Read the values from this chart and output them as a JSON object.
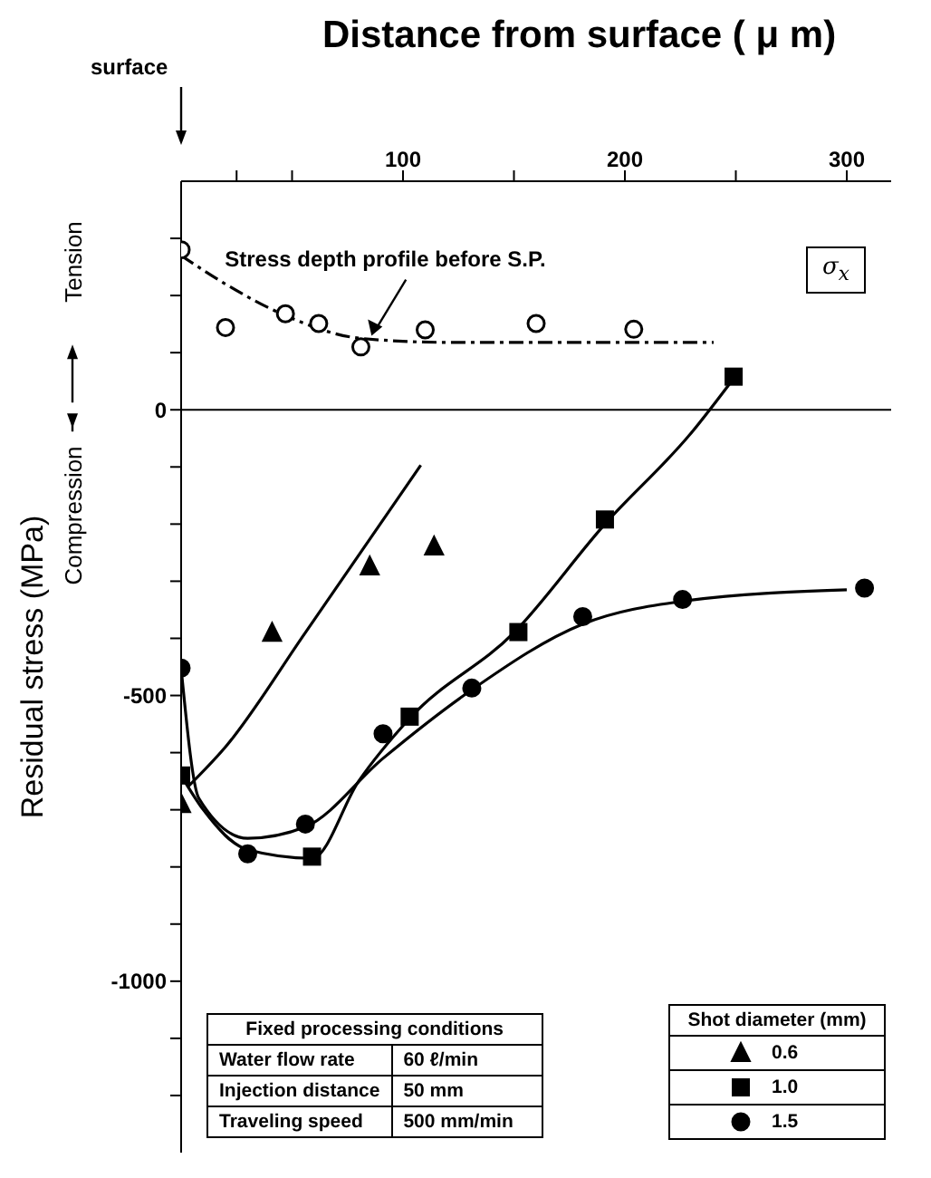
{
  "chart_data": {
    "type": "scatter",
    "title": "Distance from surface ( μ m)",
    "ylabel": "Residual stress (MPa)",
    "legend_title": "Shot diameter (mm)",
    "legend": "bottom right",
    "xlim": [
      0,
      320
    ],
    "xticks": [
      {
        "value": 25,
        "label": null
      },
      {
        "value": 50,
        "label": null
      },
      100,
      {
        "value": 150,
        "label": null
      },
      200,
      {
        "value": 250,
        "label": null
      },
      300
    ],
    "ylim": [
      -1300,
      400
    ],
    "yticks": [
      {
        "value": -1200,
        "label": null
      },
      {
        "value": -1100,
        "label": null
      },
      {
        "value": -1000,
        "label": "-1000"
      },
      {
        "value": -900,
        "label": null
      },
      {
        "value": -800,
        "label": null
      },
      {
        "value": -700,
        "label": null
      },
      {
        "value": -600,
        "label": null
      },
      {
        "value": -500,
        "label": "-500"
      },
      {
        "value": -400,
        "label": null
      },
      {
        "value": -300,
        "label": null
      },
      {
        "value": -200,
        "label": null
      },
      {
        "value": -100,
        "label": null
      },
      0,
      {
        "value": 100,
        "label": null
      },
      {
        "value": 200,
        "label": null
      },
      {
        "value": 300,
        "label": null
      }
    ],
    "ref_lines": [
      {
        "axis": "y",
        "value": 0,
        "color": "#000000"
      }
    ],
    "annotations": [
      "surface",
      "Tension",
      "Compression",
      {
        "text": "Stress depth profile before S.P.",
        "x": 85,
        "y": 120
      },
      "σ$_{x}$",
      "Fixed processing conditions",
      "Water flow rate",
      "60 ℓ/min",
      "Injection distance",
      "50 mm",
      "Traveling speed",
      "500 mm/min"
    ],
    "series": [
      {
        "type": "scatter",
        "marker": "circle",
        "color": "#000000",
        "x": [
          0,
          20,
          47,
          62,
          81,
          110,
          160,
          204
        ],
        "values": [
          280,
          144,
          168,
          151,
          110,
          140,
          151,
          141
        ]
      },
      {
        "type": "line",
        "line_style": "dashed",
        "marker": "none",
        "color": "#000000",
        "x": [
          0,
          20,
          47,
          81,
          120,
          240
        ],
        "values": [
          270,
          220,
          165,
          125,
          118,
          118
        ]
      },
      {
        "type": "scatter",
        "name": "0.6",
        "marker": "triangle",
        "color": "#000000",
        "x": [
          0,
          41,
          85,
          114
        ],
        "values": [
          -690,
          -390,
          -274,
          -239
        ]
      },
      {
        "type": "line",
        "marker": "none",
        "color": "#000000",
        "x": [
          3,
          20,
          56,
          108
        ],
        "values": [
          -660,
          -590,
          -390,
          -97
        ]
      },
      {
        "type": "scatter",
        "name": "1.0",
        "marker": "square",
        "color": "#000000",
        "x": [
          0,
          59,
          103,
          152,
          191,
          249
        ],
        "values": [
          -640,
          -782,
          -537,
          -389,
          -192,
          58
        ]
      },
      {
        "type": "line",
        "marker": "none",
        "color": "#000000",
        "x": [
          0,
          10,
          30,
          59,
          80,
          103,
          150,
          191,
          230,
          250
        ],
        "values": [
          -640,
          -700,
          -770,
          -785,
          -650,
          -540,
          -390,
          -200,
          -40,
          60
        ]
      },
      {
        "type": "scatter",
        "name": "1.5",
        "marker": "circle",
        "color": "#000000",
        "x": [
          0,
          30,
          56,
          91,
          131,
          181,
          226,
          308
        ],
        "values": [
          -452,
          -777,
          -725,
          -567,
          -487,
          -362,
          -332,
          -312
        ]
      },
      {
        "type": "line",
        "marker": "none",
        "color": "#000000",
        "x": [
          0,
          8,
          30,
          56,
          91,
          131,
          181,
          226,
          300
        ],
        "values": [
          -452,
          -680,
          -750,
          -730,
          -610,
          -490,
          -375,
          -335,
          -315
        ]
      }
    ]
  }
}
